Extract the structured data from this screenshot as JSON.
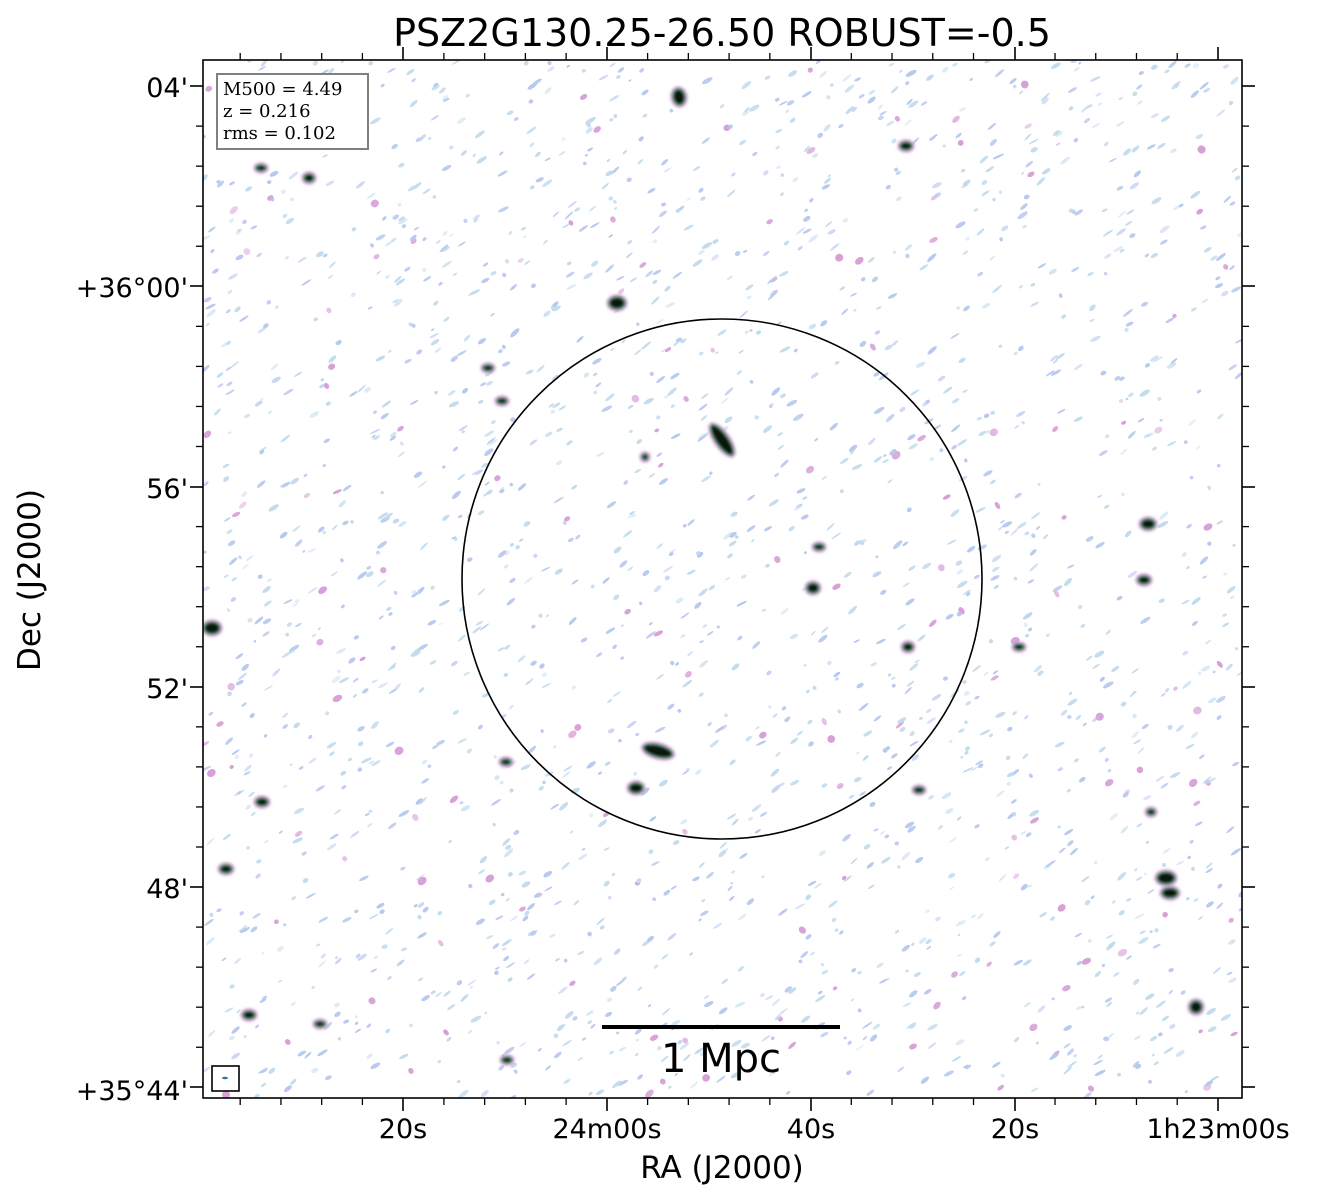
{
  "chart_data": {
    "type": "radio-image",
    "title": "PSZ2G130.25-26.50 ROBUST=-0.5",
    "xlabel": "RA (J2000)",
    "ylabel": "Dec (J2000)",
    "x_ticks": [
      "20s",
      "24m00s",
      "40s",
      "20s",
      "1h23m00s"
    ],
    "y_ticks": [
      "04'",
      "+36°00'",
      "56'",
      "52'",
      "48'",
      "+35°44'"
    ],
    "info_box": [
      "M500 = 4.49",
      "z = 0.216",
      "rms = 0.102"
    ],
    "scale_bar_label": "1 Mpc",
    "colors": {
      "noise_blue": "#b9c9ef",
      "noise_cyan": "#c3dced",
      "noise_magenta": "#d7a0d8",
      "source_core": "#0f1410",
      "source_ring": "#4c8b6a"
    }
  }
}
